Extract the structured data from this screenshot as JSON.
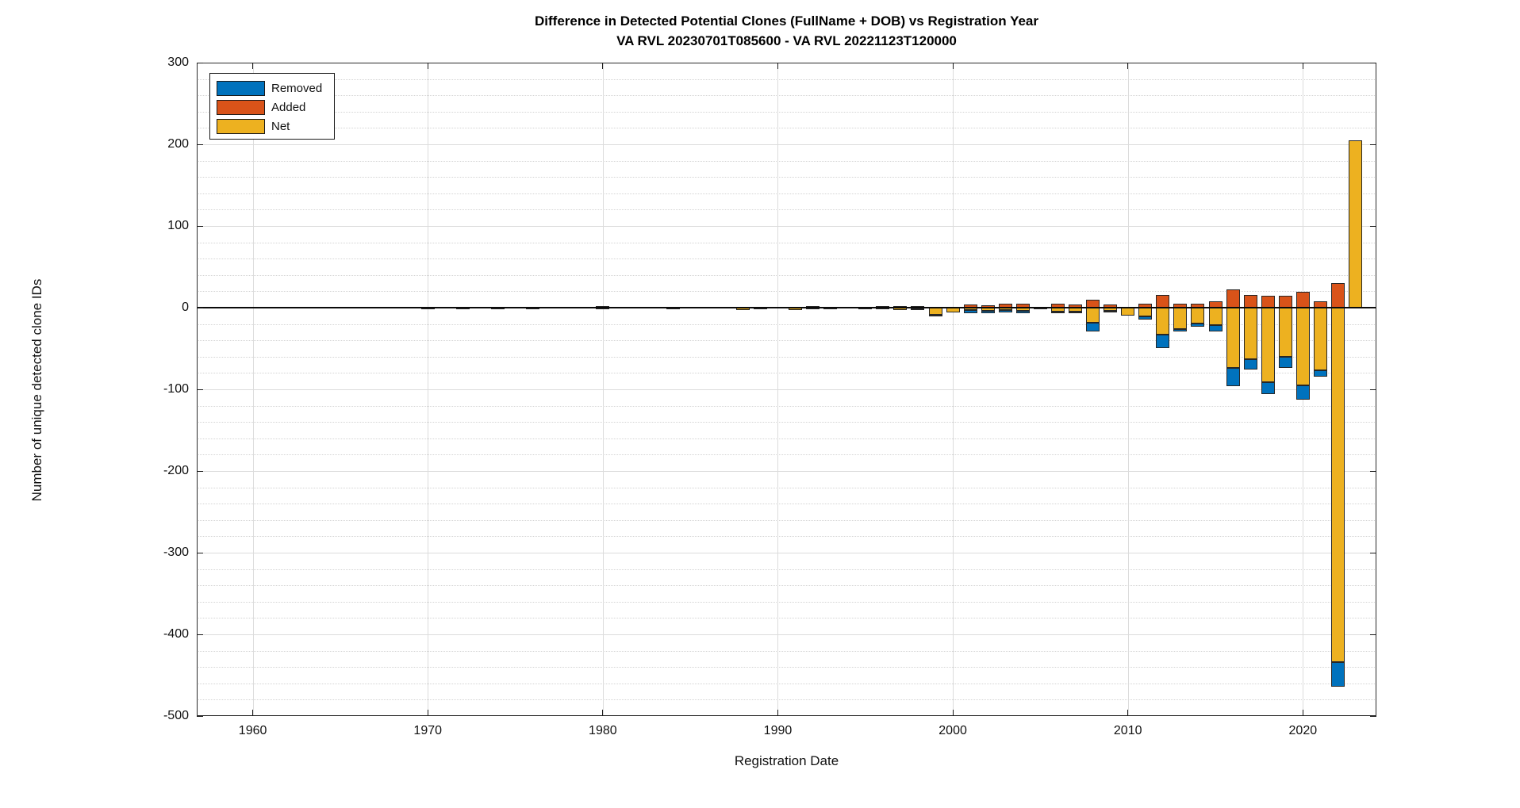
{
  "figure": {
    "title_line1": "Difference in Detected Potential Clones (FullName + DOB) vs Registration Year",
    "title_line2": "VA RVL 20230701T085600 - VA RVL 20221123T120000"
  },
  "legend": {
    "items": [
      {
        "label": "Removed",
        "color": "#0072BD"
      },
      {
        "label": "Added",
        "color": "#D95319"
      },
      {
        "label": "Net",
        "color": "#EDB120"
      }
    ]
  },
  "chart_data": {
    "type": "bar",
    "stacked": true,
    "title": "Difference in Detected Potential Clones (FullName + DOB) vs Registration Year",
    "subtitle": "VA RVL 20230701T085600 - VA RVL 20221123T120000",
    "xlabel": "Registration Date",
    "ylabel": "Number of unique detected clone IDs",
    "xlim": [
      1956.8,
      2024.2
    ],
    "ylim": [
      -500,
      300
    ],
    "x_ticks": [
      1960,
      1970,
      1980,
      1990,
      2000,
      2010,
      2020
    ],
    "y_ticks": [
      300,
      200,
      100,
      0,
      -100,
      -200,
      -300,
      -400,
      -500
    ],
    "minor_grid_step": 20,
    "grid": "on",
    "legend_position": "top-left",
    "years": [
      1970,
      1972,
      1974,
      1976,
      1979,
      1980,
      1984,
      1985,
      1988,
      1989,
      1990,
      1991,
      1992,
      1993,
      1995,
      1996,
      1997,
      1998,
      1999,
      2000,
      2001,
      2002,
      2003,
      2004,
      2005,
      2006,
      2007,
      2008,
      2009,
      2010,
      2011,
      2012,
      2013,
      2014,
      2015,
      2016,
      2017,
      2018,
      2019,
      2020,
      2021,
      2022,
      2023
    ],
    "series": [
      {
        "name": "Removed",
        "color": "#0072BD",
        "values": [
          -1,
          -1,
          -1,
          -1,
          0,
          -1,
          -1,
          0,
          -3,
          -1,
          0,
          -3,
          -1,
          -1,
          -1,
          -1,
          -3,
          -3,
          -10,
          -6,
          -7,
          -7,
          -6,
          -7,
          -1,
          -7,
          -6,
          -29,
          -5,
          -10,
          -15,
          -50,
          -29,
          -23,
          -29,
          -96,
          -76,
          -106,
          -74,
          -113,
          -84,
          -464,
          0
        ]
      },
      {
        "name": "Added",
        "color": "#D95319",
        "values": [
          0,
          1,
          0,
          0,
          1,
          2,
          1,
          1,
          0,
          1,
          1,
          1,
          2,
          1,
          1,
          2,
          2,
          2,
          1,
          1,
          4,
          3,
          5,
          5,
          1,
          5,
          4,
          10,
          4,
          1,
          5,
          16,
          5,
          5,
          8,
          22,
          16,
          15,
          15,
          19,
          8,
          30,
          0
        ]
      },
      {
        "name": "Net",
        "color": "#EDB120",
        "values": [
          -1,
          -1,
          -1,
          -1,
          0,
          -1,
          -1,
          0,
          -3,
          -1,
          0,
          -3,
          -1,
          -1,
          -1,
          -1,
          -3,
          -1,
          -9,
          -6,
          -3,
          -4,
          -3,
          -4,
          -1,
          -5,
          -5,
          -18,
          -4,
          -10,
          -11,
          -33,
          -26,
          -19,
          -21,
          -74,
          -63,
          -91,
          -60,
          -95,
          -77,
          -434,
          205
        ]
      }
    ]
  }
}
